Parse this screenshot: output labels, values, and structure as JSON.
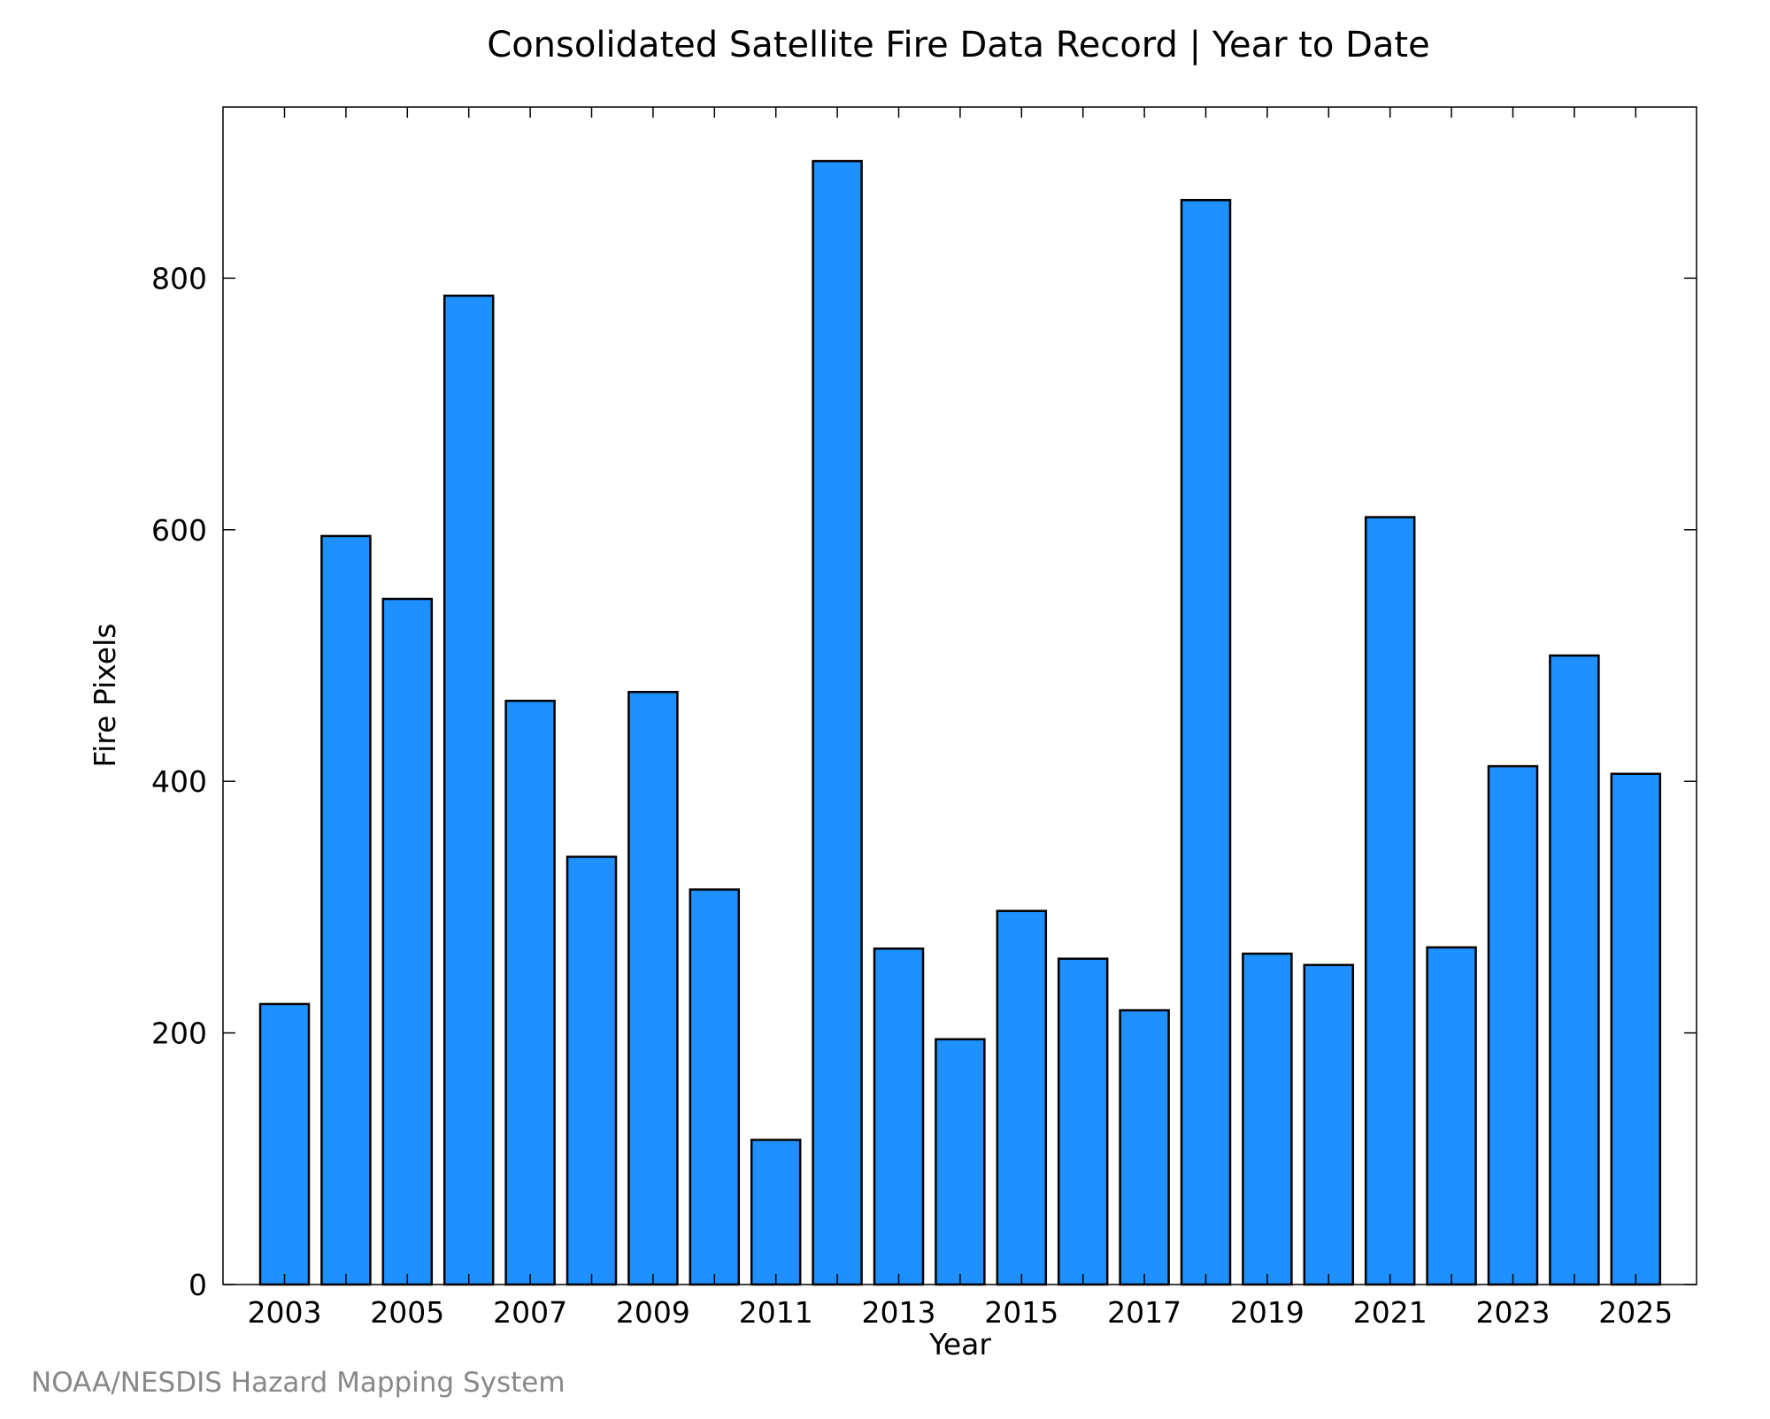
{
  "footer": {
    "credit": "NOAA/NESDIS Hazard Mapping System"
  },
  "colors": {
    "bar_fill": "#1e90ff",
    "bar_stroke": "#000000",
    "axis": "#000000",
    "credit_text": "#888888"
  },
  "chart_data": {
    "type": "bar",
    "title": "Consolidated Satellite Fire Data Record | Year to Date",
    "xlabel": "Year",
    "ylabel": "Fire Pixels",
    "categories": [
      "2003",
      "2004",
      "2005",
      "2006",
      "2007",
      "2008",
      "2009",
      "2010",
      "2011",
      "2012",
      "2013",
      "2014",
      "2015",
      "2016",
      "2017",
      "2018",
      "2019",
      "2020",
      "2021",
      "2022",
      "2023",
      "2024",
      "2025"
    ],
    "values": [
      223,
      595,
      545,
      786,
      464,
      340,
      471,
      314,
      115,
      893,
      267,
      195,
      297,
      259,
      218,
      862,
      263,
      254,
      610,
      268,
      412,
      500,
      406
    ],
    "x_tick_labels": [
      "2003",
      "2005",
      "2007",
      "2009",
      "2011",
      "2013",
      "2015",
      "2017",
      "2019",
      "2021",
      "2023",
      "2025"
    ],
    "y_ticks": [
      0,
      200,
      400,
      600,
      800
    ],
    "ylim": [
      0,
      936
    ],
    "grid": false,
    "legend": "none"
  }
}
